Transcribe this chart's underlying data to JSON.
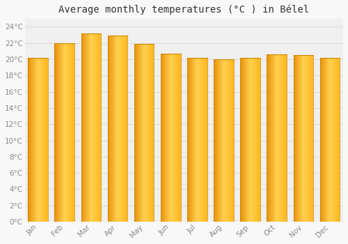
{
  "title": "Average monthly temperatures (°C ) in Bélel",
  "months": [
    "Jan",
    "Feb",
    "Mar",
    "Apr",
    "May",
    "Jun",
    "Jul",
    "Aug",
    "Sep",
    "Oct",
    "Nov",
    "Dec"
  ],
  "values": [
    20.2,
    22.0,
    23.2,
    22.9,
    21.9,
    20.7,
    20.2,
    20.0,
    20.2,
    20.6,
    20.5,
    20.2
  ],
  "bar_color_left": "#E8920A",
  "bar_color_center": "#FFD050",
  "bar_color_right": "#FFB820",
  "ylim": [
    0,
    25
  ],
  "yticks": [
    0,
    2,
    4,
    6,
    8,
    10,
    12,
    14,
    16,
    18,
    20,
    22,
    24
  ],
  "ytick_labels": [
    "0°C",
    "2°C",
    "4°C",
    "6°C",
    "8°C",
    "10°C",
    "12°C",
    "14°C",
    "16°C",
    "18°C",
    "20°C",
    "22°C",
    "24°C"
  ],
  "background_color": "#F8F8F8",
  "plot_bg_color": "#F0F0F0",
  "grid_color": "#DDDDDD",
  "title_fontsize": 10,
  "tick_fontsize": 7.5,
  "tick_color": "#888888"
}
